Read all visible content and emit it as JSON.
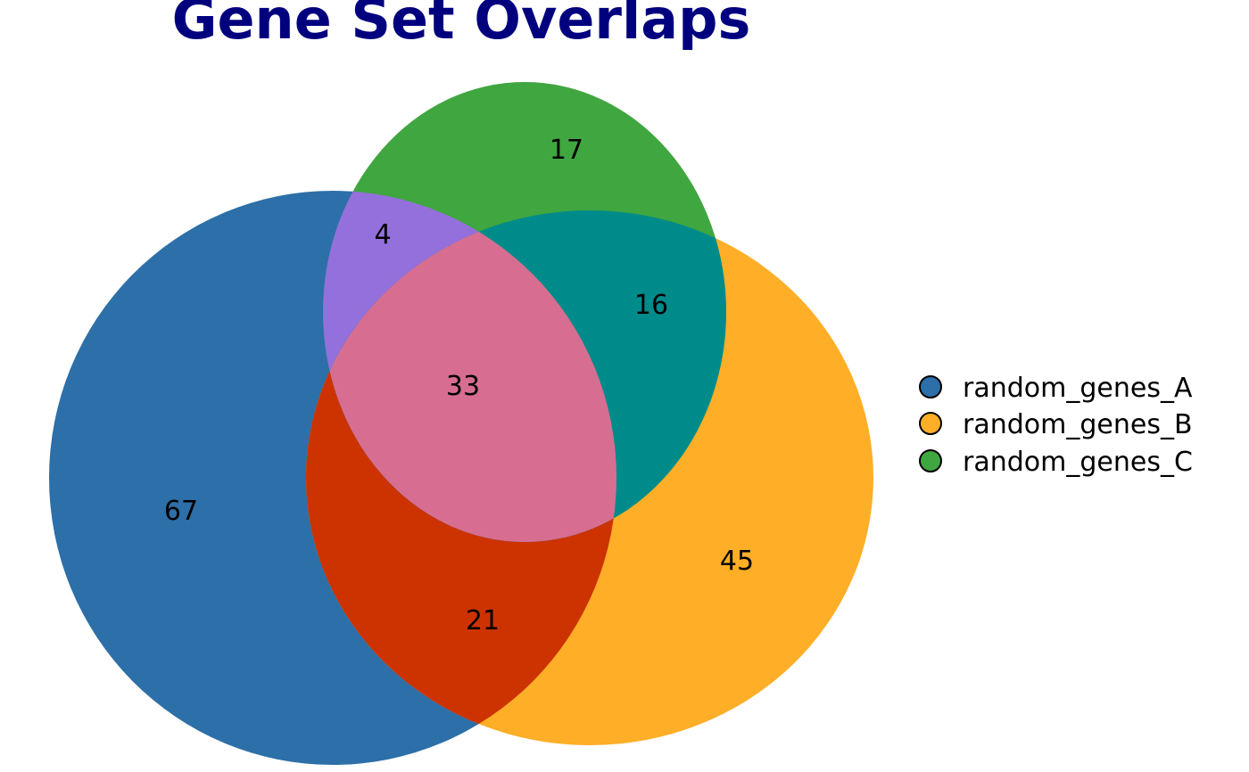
{
  "title": "Gene Set Overlaps",
  "colors": {
    "title": "#00007f",
    "A": "#2d6fa8",
    "B": "#ffae27",
    "C": "#40a640",
    "AB": "#cc3300",
    "AC": "#9370db",
    "BC": "#008b8b",
    "ABC": "#d76e91"
  },
  "sets": [
    {
      "key": "A",
      "name": "random_genes_A"
    },
    {
      "key": "B",
      "name": "random_genes_B"
    },
    {
      "key": "C",
      "name": "random_genes_C"
    }
  ],
  "regions": {
    "A_only": 67,
    "B_only": 45,
    "C_only": 17,
    "A_and_B": 21,
    "A_and_C": 4,
    "B_and_C": 16,
    "A_and_B_and_C": 33
  }
}
